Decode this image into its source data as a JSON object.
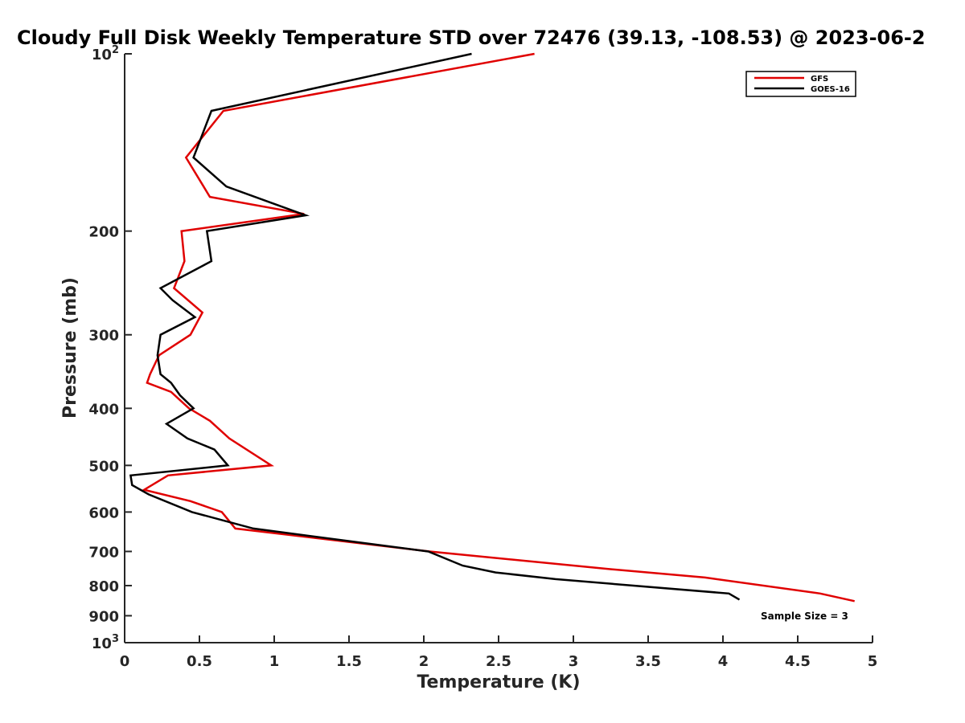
{
  "chart_data": {
    "type": "line",
    "title": "Cloudy Full Disk Weekly Temperature STD over 72476 (39.13, -108.53) @ 2023-06-2",
    "xlabel": "Temperature (K)",
    "ylabel": "Pressure (mb)",
    "xlim": [
      0,
      5
    ],
    "ylim": [
      100,
      1000
    ],
    "yscale": "log",
    "y_reversed": true,
    "x_ticks": [
      0,
      0.5,
      1,
      1.5,
      2,
      2.5,
      3,
      3.5,
      4,
      4.5,
      5
    ],
    "x_tick_labels": [
      "0",
      "0.5",
      "1",
      "1.5",
      "2",
      "2.5",
      "3",
      "3.5",
      "4",
      "4.5",
      "5"
    ],
    "y_ticks": [
      100,
      200,
      300,
      400,
      500,
      600,
      700,
      800,
      900,
      1000
    ],
    "y_tick_labels": [
      {
        "base": "10",
        "exp": "2"
      },
      {
        "base": "200"
      },
      {
        "base": "300"
      },
      {
        "base": "400"
      },
      {
        "base": "500"
      },
      {
        "base": "600"
      },
      {
        "base": "700"
      },
      {
        "base": "800"
      },
      {
        "base": "900"
      },
      {
        "base": "10",
        "exp": "3"
      }
    ],
    "grid": false,
    "legend_position": "top-right",
    "series": [
      {
        "name": "GFS",
        "color": "#e00000",
        "points": [
          [
            2.74,
            100
          ],
          [
            0.66,
            125
          ],
          [
            0.41,
            150
          ],
          [
            0.57,
            175
          ],
          [
            1.2,
            187
          ],
          [
            0.38,
            200
          ],
          [
            0.4,
            225
          ],
          [
            0.33,
            250
          ],
          [
            0.52,
            275
          ],
          [
            0.44,
            300
          ],
          [
            0.23,
            325
          ],
          [
            0.17,
            350
          ],
          [
            0.15,
            362
          ],
          [
            0.31,
            375
          ],
          [
            0.43,
            400
          ],
          [
            0.57,
            420
          ],
          [
            0.7,
            450
          ],
          [
            0.98,
            500
          ],
          [
            0.29,
            520
          ],
          [
            0.13,
            550
          ],
          [
            0.44,
            575
          ],
          [
            0.65,
            600
          ],
          [
            0.74,
            640
          ],
          [
            2.04,
            700
          ],
          [
            3.24,
            750
          ],
          [
            3.88,
            775
          ],
          [
            4.65,
            825
          ],
          [
            4.88,
            850
          ]
        ]
      },
      {
        "name": "GOES-16",
        "color": "#000000",
        "points": [
          [
            2.32,
            100
          ],
          [
            0.58,
            125
          ],
          [
            0.46,
            150
          ],
          [
            0.68,
            168
          ],
          [
            1.21,
            188
          ],
          [
            0.55,
            200
          ],
          [
            0.58,
            225
          ],
          [
            0.24,
            250
          ],
          [
            0.32,
            262
          ],
          [
            0.47,
            280
          ],
          [
            0.24,
            300
          ],
          [
            0.22,
            325
          ],
          [
            0.24,
            350
          ],
          [
            0.31,
            362
          ],
          [
            0.37,
            380
          ],
          [
            0.46,
            400
          ],
          [
            0.28,
            425
          ],
          [
            0.42,
            450
          ],
          [
            0.6,
            470
          ],
          [
            0.69,
            500
          ],
          [
            0.04,
            520
          ],
          [
            0.05,
            540
          ],
          [
            0.16,
            560
          ],
          [
            0.45,
            600
          ],
          [
            0.86,
            640
          ],
          [
            2.03,
            700
          ],
          [
            2.26,
            740
          ],
          [
            2.48,
            760
          ],
          [
            2.88,
            780
          ],
          [
            4.04,
            825
          ],
          [
            4.11,
            845
          ]
        ]
      }
    ],
    "annotations": [
      "Sample Size = 3"
    ]
  }
}
